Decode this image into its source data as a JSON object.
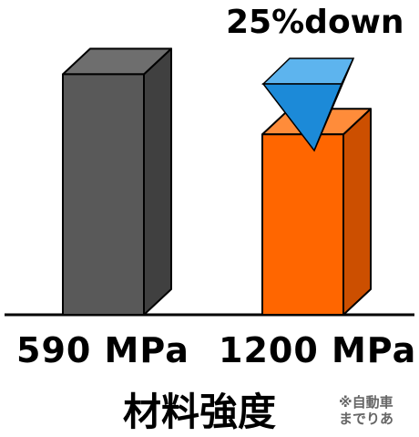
{
  "chart_data": {
    "type": "bar",
    "categories": [
      "590 MPa",
      "1200 MPa"
    ],
    "values": [
      100,
      75
    ],
    "ylim": [
      0,
      110
    ],
    "grid": false,
    "annotation": "25%down",
    "axis_label": "材料強度",
    "note_lines": [
      "※自動車",
      "までりあ"
    ],
    "colors": {
      "bar_1_front": "#595959",
      "bar_1_side": "#404040",
      "bar_1_top": "#6e6e6e",
      "bar_2_front": "#ff6600",
      "bar_2_side": "#cc4f00",
      "bar_2_top": "#ff8c3a",
      "arrow_top": "#5db4ee",
      "arrow_left": "#1c8ad8",
      "arrow_right": "#0f5f9e",
      "baseline": "#000000"
    }
  }
}
